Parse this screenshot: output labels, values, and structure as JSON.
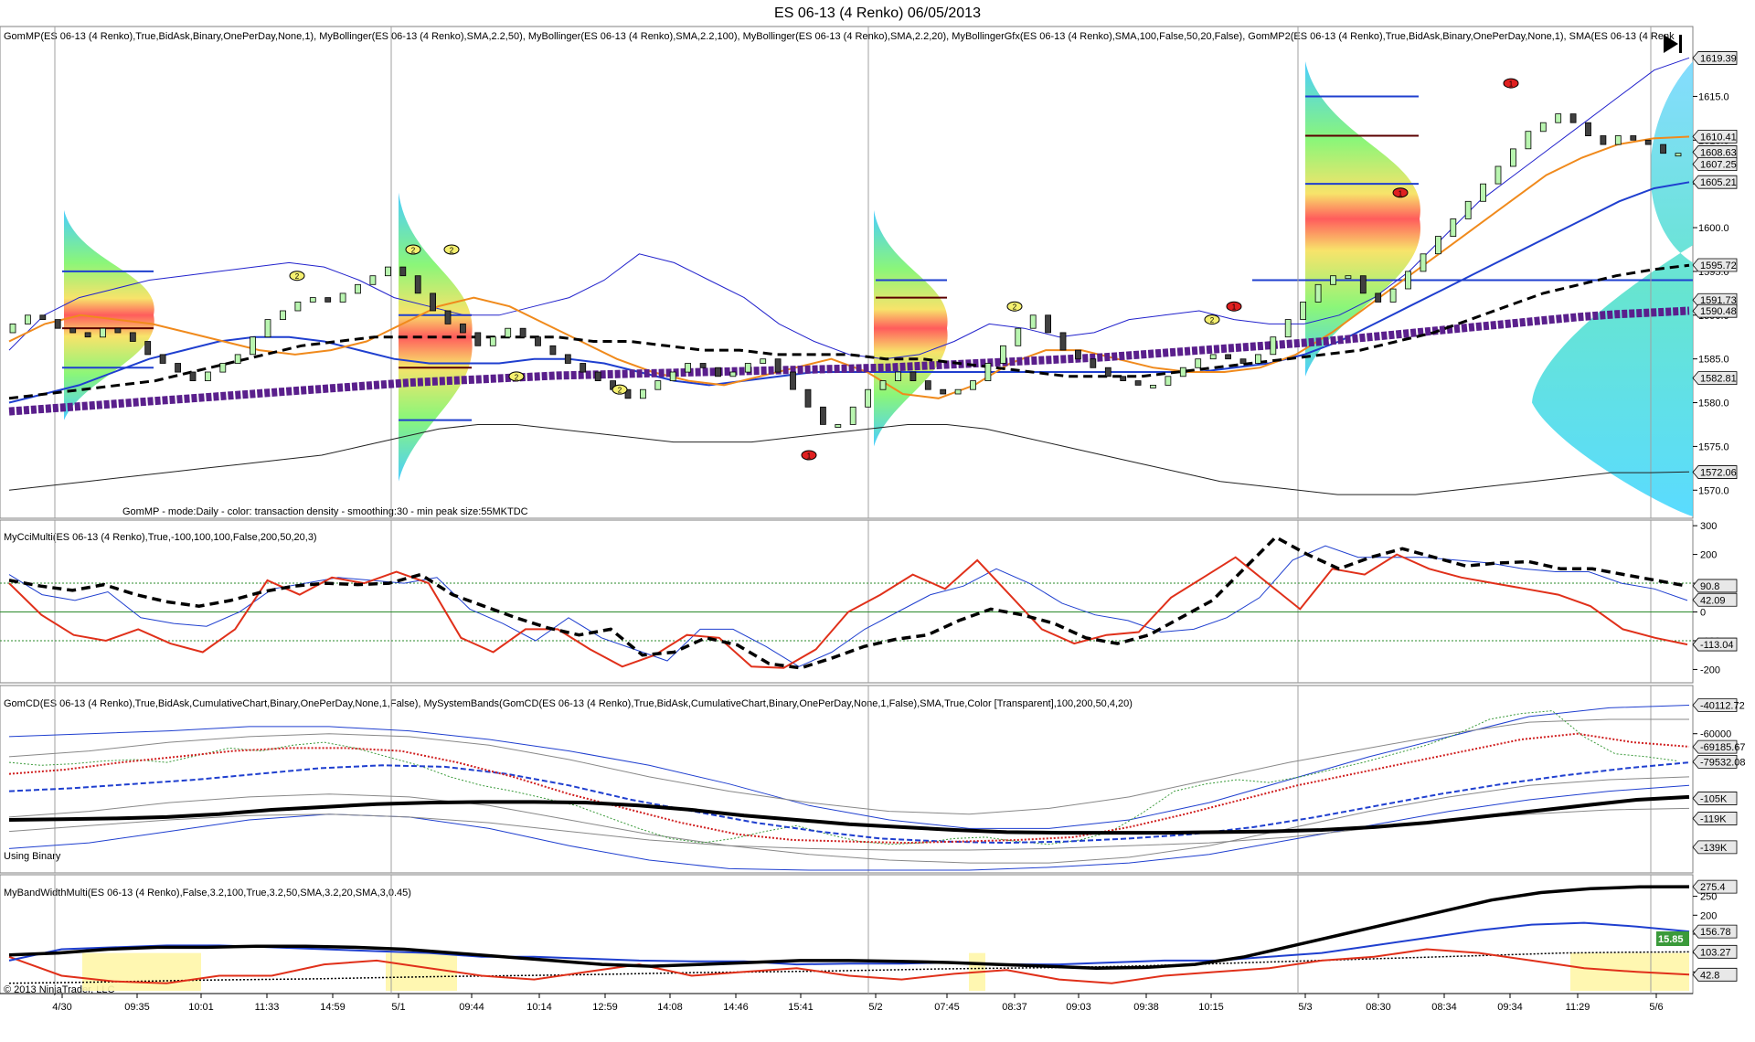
{
  "window": {
    "title": "ES 06-13 (4 Renko)  06/05/2013"
  },
  "copyright": "© 2013 NinjaTrader, LLC",
  "colors": {
    "bg": "#ffffff",
    "up_bar": "#b9f5b0",
    "down_bar": "#404040",
    "upper_bb": "#2222cc",
    "sma": "#f08a1c",
    "ema_dash": "#000000",
    "purple": "#5a1f8c",
    "blue": "#1f3fcf",
    "red": "#e0301a"
  },
  "chart_data": [
    {
      "type": "line",
      "name": "price_panel",
      "indicator_label": "GomMP(ES 06-13 (4 Renko),True,BidAsk,Binary,OnePerDay,None,1), MyBollinger(ES 06-13 (4 Renko),SMA,2.2,50), MyBollinger(ES 06-13 (4 Renko),SMA,2.2,100), MyBollinger(ES 06-13 (4 Renko),SMA,2.2,20), MyBollingerGfx(ES 06-13 (4 Renko),SMA,100,False,50,20,False), GomMP2(ES 06-13 (4 Renko),True,BidAsk,Binary,OnePerDay,None,1), SMA(ES 06-13 (4 Renk",
      "note_text": "GomMP - mode:Daily - color: transaction density - smoothing:30 - min peak size:55MKTDC",
      "y_ticks": [
        1570,
        1575,
        1580,
        1585,
        1590,
        1595,
        1600,
        1605,
        1610,
        1615
      ],
      "ylim": [
        1567,
        1621
      ],
      "price_tags": [
        "1619.39",
        "1610.41",
        "1608.63",
        "1607.25",
        "1605.21",
        "1595.72",
        "1591.73",
        "1590.48",
        "1582.81",
        "1572.06"
      ],
      "price_tag_values": [
        1619.39,
        1610.41,
        1608.63,
        1607.25,
        1605.21,
        1595.72,
        1591.73,
        1590.48,
        1582.81,
        1572.06
      ],
      "close": [
        1589,
        1590,
        1589.5,
        1588.5,
        1588,
        1587.5,
        1588.5,
        1588,
        1587,
        1585.5,
        1584.5,
        1583.5,
        1582.5,
        1583.5,
        1584.5,
        1585.5,
        1587.5,
        1589.5,
        1590.5,
        1591.5,
        1592,
        1591.5,
        1592.5,
        1593.5,
        1594.5,
        1595.5,
        1594.5,
        1592.5,
        1590.5,
        1589,
        1588,
        1586.5,
        1587.5,
        1588.5,
        1587.5,
        1586.5,
        1585.5,
        1584.5,
        1583.5,
        1582.5,
        1581.5,
        1580.5,
        1581.5,
        1582.5,
        1583.5,
        1584.5,
        1584,
        1583,
        1583.5,
        1584.5,
        1585,
        1583.5,
        1581.5,
        1579.5,
        1577.5,
        1577.5,
        1579.5,
        1581.5,
        1582.5,
        1583.5,
        1582.5,
        1581.5,
        1581,
        1581.5,
        1582.5,
        1584.5,
        1586.5,
        1588.5,
        1590,
        1588,
        1586,
        1585,
        1584,
        1583,
        1582.5,
        1582,
        1582,
        1583,
        1584,
        1585,
        1585.5,
        1585,
        1584.5,
        1585.5,
        1587.5,
        1589.5,
        1591.5,
        1593.5,
        1594.5,
        1594.5,
        1592.5,
        1591.5,
        1593,
        1595,
        1597,
        1599,
        1601,
        1603,
        1605,
        1607,
        1609,
        1611,
        1612,
        1613,
        1612,
        1610.5,
        1609.5,
        1610.5,
        1610,
        1609.5,
        1608.5,
        1608.5
      ],
      "upper_band_2": [
        1586,
        1590,
        1592,
        1593,
        1594,
        1594.5,
        1595,
        1595.5,
        1596,
        1595.5,
        1594,
        1592,
        1591,
        1590,
        1590,
        1591,
        1592,
        1594,
        1597,
        1596,
        1594,
        1592,
        1589,
        1587,
        1585.5,
        1585,
        1585.5,
        1587,
        1589,
        1588.5,
        1587.5,
        1588,
        1589.5,
        1590,
        1590.5,
        1589.5,
        1589,
        1589,
        1590,
        1592,
        1595,
        1599,
        1603,
        1606,
        1609,
        1612,
        1615,
        1618,
        1619.4
      ],
      "mid_band_orange": [
        1587,
        1589,
        1590,
        1589.5,
        1589,
        1588,
        1587,
        1586,
        1585.5,
        1586,
        1587,
        1589,
        1591,
        1592,
        1591,
        1589,
        1587,
        1585,
        1583.5,
        1582.5,
        1582,
        1583,
        1584,
        1585,
        1583.5,
        1581,
        1580.5,
        1582,
        1584.5,
        1586,
        1586,
        1585,
        1584,
        1583.5,
        1583.5,
        1584,
        1585.5,
        1588,
        1591,
        1594,
        1597,
        1600,
        1603,
        1606,
        1608,
        1609.5,
        1610.2,
        1610.4
      ],
      "lower_band_blue": [
        1580,
        1581,
        1582,
        1583.5,
        1585,
        1586,
        1587,
        1587.5,
        1587.5,
        1587,
        1586,
        1585,
        1584.5,
        1584.5,
        1584.5,
        1585,
        1585,
        1584.5,
        1583.5,
        1582.5,
        1582,
        1582.5,
        1583,
        1583.5,
        1583.5,
        1583.5,
        1583.5,
        1583.5,
        1583.5,
        1583.5,
        1583.5,
        1583.5,
        1583.5,
        1583.5,
        1583.5,
        1584,
        1584.5,
        1585.5,
        1587,
        1589,
        1591,
        1593,
        1595,
        1597,
        1599,
        1601,
        1603,
        1604.5,
        1605.2
      ],
      "ema_dashed": [
        1580.5,
        1581,
        1581.5,
        1582,
        1582.5,
        1583.5,
        1584.5,
        1585.5,
        1586.5,
        1587,
        1587.5,
        1587.5,
        1587.5,
        1587.5,
        1587.5,
        1587.5,
        1587,
        1587,
        1586.5,
        1586,
        1586,
        1585.5,
        1585.5,
        1585.5,
        1585,
        1585,
        1584.5,
        1584,
        1583.5,
        1583,
        1583,
        1583,
        1583.5,
        1584,
        1584.5,
        1585,
        1585.5,
        1586,
        1587,
        1588,
        1589.5,
        1591,
        1592.5,
        1593.5,
        1594.5,
        1595.2,
        1595.7
      ],
      "purple_sma100": [
        1579,
        1579.3,
        1579.6,
        1579.9,
        1580.2,
        1580.5,
        1580.8,
        1581.1,
        1581.4,
        1581.7,
        1582,
        1582.3,
        1582.5,
        1582.7,
        1582.9,
        1583.1,
        1583.2,
        1583.3,
        1583.4,
        1583.5,
        1583.6,
        1583.7,
        1583.8,
        1583.9,
        1584,
        1584.2,
        1584.4,
        1584.6,
        1584.8,
        1585,
        1585.2,
        1585.5,
        1585.8,
        1586.1,
        1586.4,
        1586.7,
        1587,
        1587.4,
        1587.8,
        1588.2,
        1588.6,
        1589,
        1589.4,
        1589.8,
        1590.1,
        1590.3,
        1590.5
      ],
      "outer_lower": [
        1570,
        1570.5,
        1571,
        1571.5,
        1572,
        1572.5,
        1573,
        1573.5,
        1574,
        1575,
        1576,
        1577,
        1577.5,
        1577.5,
        1577,
        1576.5,
        1576,
        1575.5,
        1575.5,
        1575.5,
        1576,
        1576.5,
        1577,
        1577.5,
        1577.5,
        1577,
        1576,
        1575,
        1574,
        1573,
        1572,
        1571,
        1570.5,
        1570,
        1569.5,
        1569.5,
        1569.5,
        1570,
        1570.5,
        1571,
        1571.5,
        1572,
        1572,
        1572.1
      ]
    },
    {
      "type": "line",
      "name": "cci_panel",
      "indicator_label": "MyCciMulti(ES 06-13 (4 Renko),True,-100,100,100,False,200,50,20,3)",
      "y_ticks": [
        300,
        200,
        100,
        0,
        -100,
        -200
      ],
      "ylim": [
        -240,
        310
      ],
      "value_tags": [
        "90.8",
        "42.09",
        "-113.04"
      ],
      "value_tag_values": [
        90.8,
        42.09,
        -113.04
      ],
      "cci_200_dashed": [
        110,
        90,
        75,
        95,
        60,
        35,
        20,
        40,
        70,
        90,
        100,
        95,
        100,
        130,
        60,
        20,
        -20,
        -55,
        -80,
        -60,
        -150,
        -140,
        -90,
        -115,
        -180,
        -195,
        -160,
        -120,
        -95,
        -80,
        -30,
        10,
        -10,
        -40,
        -90,
        -110,
        -80,
        -20,
        40,
        150,
        260,
        200,
        150,
        190,
        220,
        190,
        160,
        170,
        175,
        150,
        150,
        130,
        110,
        90
      ],
      "cci_50_blue": [
        130,
        60,
        40,
        70,
        -20,
        -40,
        -50,
        0,
        80,
        100,
        120,
        110,
        100,
        120,
        10,
        -40,
        -100,
        -20,
        -90,
        -130,
        -170,
        -60,
        -60,
        -120,
        -190,
        -140,
        -60,
        0,
        60,
        90,
        150,
        100,
        30,
        -10,
        -30,
        -70,
        -60,
        -20,
        50,
        180,
        230,
        190,
        190,
        190,
        180,
        170,
        150,
        140,
        140,
        100,
        80,
        40
      ],
      "cci_20_orange": [
        100,
        -10,
        -80,
        -100,
        -60,
        -110,
        -140,
        -60,
        110,
        60,
        120,
        100,
        140,
        100,
        -90,
        -140,
        -60,
        -60,
        -130,
        -190,
        -150,
        -80,
        -90,
        -190,
        -195,
        -130,
        0,
        60,
        130,
        80,
        180,
        60,
        -60,
        -110,
        -80,
        -70,
        50,
        120,
        190,
        100,
        10,
        150,
        130,
        200,
        150,
        120,
        100,
        80,
        60,
        20,
        -60,
        -90,
        -113
      ]
    },
    {
      "type": "line",
      "name": "cumulative_delta_panel",
      "indicator_label": "GomCD(ES 06-13 (4 Renko),True,BidAsk,CumulativeChart,Binary,OnePerDay,None,1,False), MySystemBands(GomCD(ES 06-13 (4 Renko),True,BidAsk,CumulativeChart,Binary,OnePerDay,None,1,False),SMA,True,Color [Transparent],100,200,50,4,20)",
      "note_text": "Using Binary",
      "y_ticks": [
        "-60000",
        "-80000",
        "-105K",
        "-119K",
        "-139K"
      ],
      "y_tick_values": [
        -60000,
        -80000,
        -105000,
        -119000,
        -139000
      ],
      "ylim": [
        -155000,
        -36000
      ],
      "value_tags": [
        "-40112.72",
        "-69185.67",
        "-79532.08",
        "-105K",
        "-119K",
        "-139K"
      ],
      "value_tag_values": [
        -40112.72,
        -69185.67,
        -79532.08,
        -105000,
        -119000,
        -139000
      ],
      "cum_delta": [
        -80000,
        -82000,
        -81000,
        -79000,
        -78000,
        -80000,
        -75000,
        -70000,
        -72000,
        -68000,
        -66000,
        -70000,
        -76000,
        -82000,
        -90000,
        -96000,
        -100000,
        -105000,
        -110000,
        -118000,
        -126000,
        -133000,
        -136000,
        -133000,
        -128000,
        -124000,
        -130000,
        -135000,
        -137000,
        -136000,
        -133000,
        -132000,
        -135000,
        -137000,
        -134000,
        -128000,
        -115000,
        -100000,
        -95000,
        -92000,
        -94000,
        -90000,
        -85000,
        -80000,
        -74000,
        -68000,
        -60000,
        -50000,
        -46000,
        -44000,
        -62000,
        -74000,
        -76000,
        -79000
      ],
      "thick_black": [
        -120000,
        -119500,
        -119000,
        -118000,
        -116000,
        -113000,
        -111000,
        -109000,
        -108000,
        -107500,
        -107500,
        -108000,
        -110000,
        -113000,
        -117000,
        -120000,
        -123000,
        -125000,
        -127000,
        -128500,
        -129000,
        -129000,
        -129000,
        -128500,
        -128000,
        -127000,
        -125000,
        -122000,
        -118000,
        -114000,
        -110000,
        -106000,
        -104000
      ],
      "red_dotted": [
        -88000,
        -85000,
        -80000,
        -76000,
        -72000,
        -70000,
        -70000,
        -72000,
        -80000,
        -90000,
        -102000,
        -112000,
        -122000,
        -130000,
        -134000,
        -135000,
        -136000,
        -135000,
        -134000,
        -132000,
        -125000,
        -116000,
        -106000,
        -96000,
        -88000,
        -80000,
        -72000,
        -64000,
        -60000,
        -66000,
        -69000
      ],
      "blue_dashed": [
        -100000,
        -98000,
        -95000,
        -92000,
        -88000,
        -84000,
        -82000,
        -83000,
        -88000,
        -96000,
        -106000,
        -114000,
        -122000,
        -128000,
        -133000,
        -135000,
        -136000,
        -135000,
        -133000,
        -130000,
        -125000,
        -118000,
        -110000,
        -102000,
        -95000,
        -89000,
        -84000,
        -80000
      ]
    },
    {
      "type": "line",
      "name": "bandwidth_panel",
      "indicator_label": "MyBandWidthMulti(ES 06-13 (4 Renko),False,3.2,100,True,3.2,50,SMA,3.2,20,SMA,3,0.45)",
      "y_ticks": [
        250,
        200,
        150,
        100,
        50
      ],
      "ylim": [
        0,
        295
      ],
      "value_tags": [
        "275.4",
        "15.85",
        "156.78",
        "103.27",
        "42.8"
      ],
      "value_tag_values": [
        275.4,
        15.85,
        156.78,
        103.27,
        42.8
      ],
      "bw_100_black": [
        95,
        100,
        110,
        115,
        115,
        118,
        118,
        115,
        110,
        100,
        90,
        80,
        70,
        65,
        70,
        75,
        80,
        80,
        78,
        75,
        70,
        65,
        60,
        62,
        70,
        90,
        120,
        150,
        180,
        210,
        240,
        260,
        270,
        275,
        275.4
      ],
      "bw_50_blue": [
        80,
        110,
        115,
        120,
        120,
        115,
        110,
        105,
        100,
        90,
        90,
        85,
        80,
        78,
        78,
        70,
        72,
        72,
        75,
        70,
        70,
        75,
        80,
        80,
        90,
        100,
        120,
        140,
        160,
        175,
        180,
        170,
        157
      ],
      "bw_20_orange": [
        90,
        40,
        25,
        20,
        40,
        40,
        70,
        80,
        60,
        40,
        30,
        50,
        70,
        40,
        50,
        60,
        40,
        30,
        45,
        55,
        30,
        20,
        40,
        50,
        60,
        80,
        90,
        110,
        100,
        80,
        60,
        50,
        43
      ],
      "bw_dotted": [
        20,
        22,
        25,
        28,
        30,
        32,
        35,
        38,
        40,
        42,
        45,
        48,
        50,
        52,
        55,
        58,
        60,
        62,
        65,
        70,
        75,
        80,
        85,
        90,
        95,
        100,
        102,
        103
      ]
    }
  ],
  "x_axis": {
    "labels": [
      "4/30",
      "09:35",
      "10:01",
      "11:33",
      "14:59",
      "5/1",
      "09:44",
      "10:14",
      "12:59",
      "14:08",
      "14:46",
      "15:41",
      "5/2",
      "07:45",
      "08:37",
      "09:03",
      "09:38",
      "10:15",
      "5/3",
      "08:30",
      "08:34",
      "09:34",
      "11:29",
      "5/6"
    ]
  },
  "markers": {
    "session_lines": [
      "4/30",
      "5/1",
      "5/2",
      "5/3",
      "5/6"
    ],
    "red_dot_labels": [
      "1",
      "1",
      "1",
      "1"
    ],
    "yellow_dot_labels": [
      "2",
      "2",
      "2",
      "2",
      "2",
      "2",
      "2",
      "2",
      "2"
    ]
  }
}
